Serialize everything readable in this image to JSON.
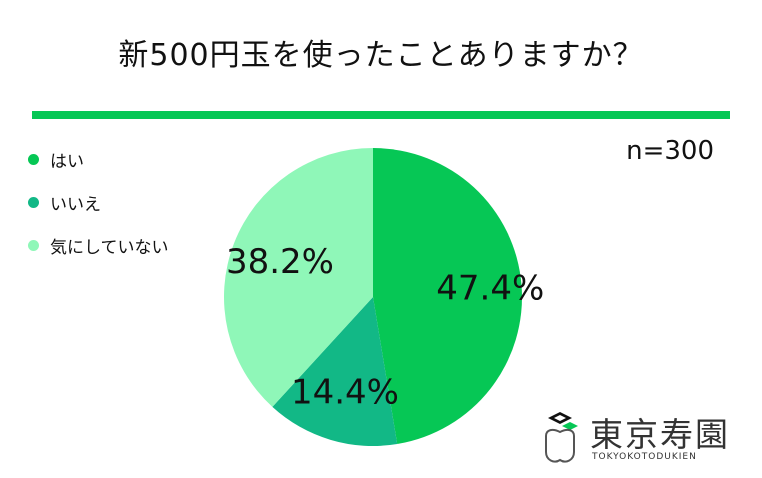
{
  "title": "新500円玉を使ったことありますか？",
  "sample_size": "n=300",
  "colors": {
    "accent": "#06c755"
  },
  "chart_data": {
    "type": "pie",
    "categories": [
      "はい",
      "いいえ",
      "気にしていない"
    ],
    "values": [
      47.4,
      14.4,
      38.2
    ],
    "value_labels": [
      "47.4%",
      "14.4%",
      "38.2%"
    ],
    "colors": [
      "#06c755",
      "#12b886",
      "#8ff7b8"
    ],
    "legend_position": "top-left",
    "start_angle": "12 o'clock, clockwise"
  },
  "logo": {
    "name": "東京寿園",
    "sub": "TOKYOKOTODUKIEN"
  }
}
